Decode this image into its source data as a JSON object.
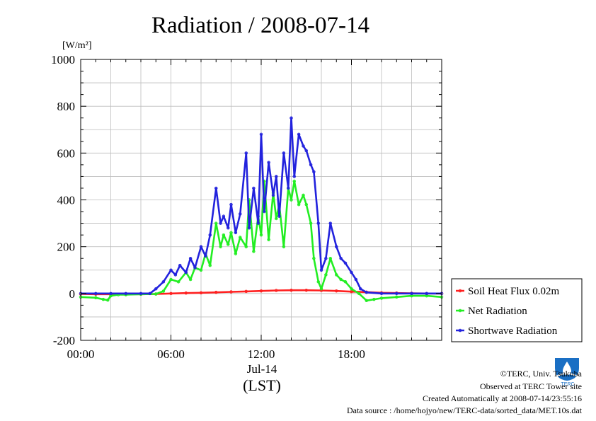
{
  "chart_data": {
    "type": "line",
    "title": "Radiation / 2008-07-14",
    "ylabel": "[W/m²]",
    "xlabel": "(LST)",
    "x_sublabel": "Jul-14",
    "x_ticks": [
      "00:00",
      "06:00",
      "12:00",
      "18:00"
    ],
    "x_tick_hours": [
      0,
      6,
      12,
      18
    ],
    "xlim_hours": [
      0,
      24
    ],
    "y_ticks": [
      1000,
      800,
      600,
      400,
      200,
      0,
      -200
    ],
    "ylim": [
      -200,
      1000
    ],
    "grid": true,
    "legend_position": "right",
    "series": [
      {
        "name": "Soil Heat Flux 0.02m",
        "color": "#ff2020",
        "x": [
          0,
          1,
          2,
          3,
          4,
          5,
          6,
          7,
          8,
          9,
          10,
          11,
          12,
          13,
          14,
          15,
          16,
          17,
          18,
          19,
          20,
          21,
          22,
          23,
          24
        ],
        "y": [
          -2,
          -3,
          -3,
          -3,
          -3,
          -2,
          0,
          2,
          3,
          5,
          7,
          9,
          11,
          13,
          14,
          14,
          13,
          11,
          8,
          6,
          3,
          2,
          1,
          0,
          0
        ]
      },
      {
        "name": "Net Radiation",
        "color": "#22ee22",
        "x": [
          0,
          1,
          1.5,
          1.8,
          2.0,
          2.5,
          3,
          4,
          5,
          5.5,
          6,
          6.5,
          7,
          7.3,
          7.6,
          8,
          8.3,
          8.6,
          9,
          9.3,
          9.5,
          9.8,
          10,
          10.3,
          10.6,
          11,
          11.2,
          11.5,
          11.8,
          12,
          12.2,
          12.5,
          12.8,
          13,
          13.2,
          13.5,
          13.8,
          14,
          14.2,
          14.5,
          14.8,
          15,
          15.3,
          15.5,
          15.8,
          16,
          16.3,
          16.6,
          17,
          17.3,
          17.6,
          18,
          18.5,
          19,
          19.5,
          20,
          21,
          22,
          23,
          24
        ],
        "y": [
          -15,
          -18,
          -25,
          -28,
          -10,
          -5,
          -5,
          -3,
          -2,
          10,
          60,
          50,
          90,
          60,
          110,
          100,
          170,
          120,
          300,
          200,
          250,
          210,
          260,
          170,
          240,
          200,
          400,
          180,
          330,
          250,
          480,
          230,
          430,
          320,
          380,
          200,
          450,
          400,
          480,
          380,
          420,
          380,
          300,
          150,
          50,
          20,
          80,
          150,
          80,
          60,
          50,
          20,
          0,
          -30,
          -25,
          -20,
          -15,
          -10,
          -10,
          -15
        ]
      },
      {
        "name": "Shortwave Radiation",
        "color": "#2222dd",
        "x": [
          0,
          1,
          2,
          3,
          4,
          4.6,
          5,
          5.5,
          6,
          6.3,
          6.6,
          7,
          7.3,
          7.6,
          8,
          8.3,
          8.6,
          9,
          9.3,
          9.5,
          9.8,
          10,
          10.3,
          10.6,
          11,
          11.2,
          11.5,
          11.8,
          12,
          12.2,
          12.5,
          12.8,
          13,
          13.2,
          13.5,
          13.8,
          14,
          14.2,
          14.5,
          14.8,
          15,
          15.3,
          15.5,
          15.8,
          16,
          16.3,
          16.6,
          17,
          17.3,
          17.6,
          18,
          18.3,
          18.6,
          19,
          20,
          21,
          22,
          23,
          24
        ],
        "y": [
          0,
          0,
          0,
          0,
          0,
          0,
          20,
          50,
          100,
          80,
          120,
          90,
          150,
          110,
          200,
          160,
          250,
          450,
          300,
          330,
          280,
          380,
          260,
          340,
          600,
          280,
          450,
          300,
          680,
          350,
          560,
          420,
          500,
          330,
          600,
          450,
          750,
          500,
          680,
          630,
          610,
          550,
          520,
          300,
          100,
          150,
          300,
          200,
          150,
          130,
          90,
          60,
          20,
          5,
          0,
          0,
          0,
          0,
          0
        ]
      }
    ]
  },
  "footer": {
    "copyright": "©TERC, Univ. Tsukuba",
    "site": "Observed at TERC Tower site",
    "created": "Created Automatically at 2008-07-14/23:55:16",
    "source": "Data source : /home/hojyo/new/TERC-data/sorted_data/MET.10s.dat"
  },
  "logo": {
    "text": "TERC",
    "color": "#1a6fc4"
  }
}
